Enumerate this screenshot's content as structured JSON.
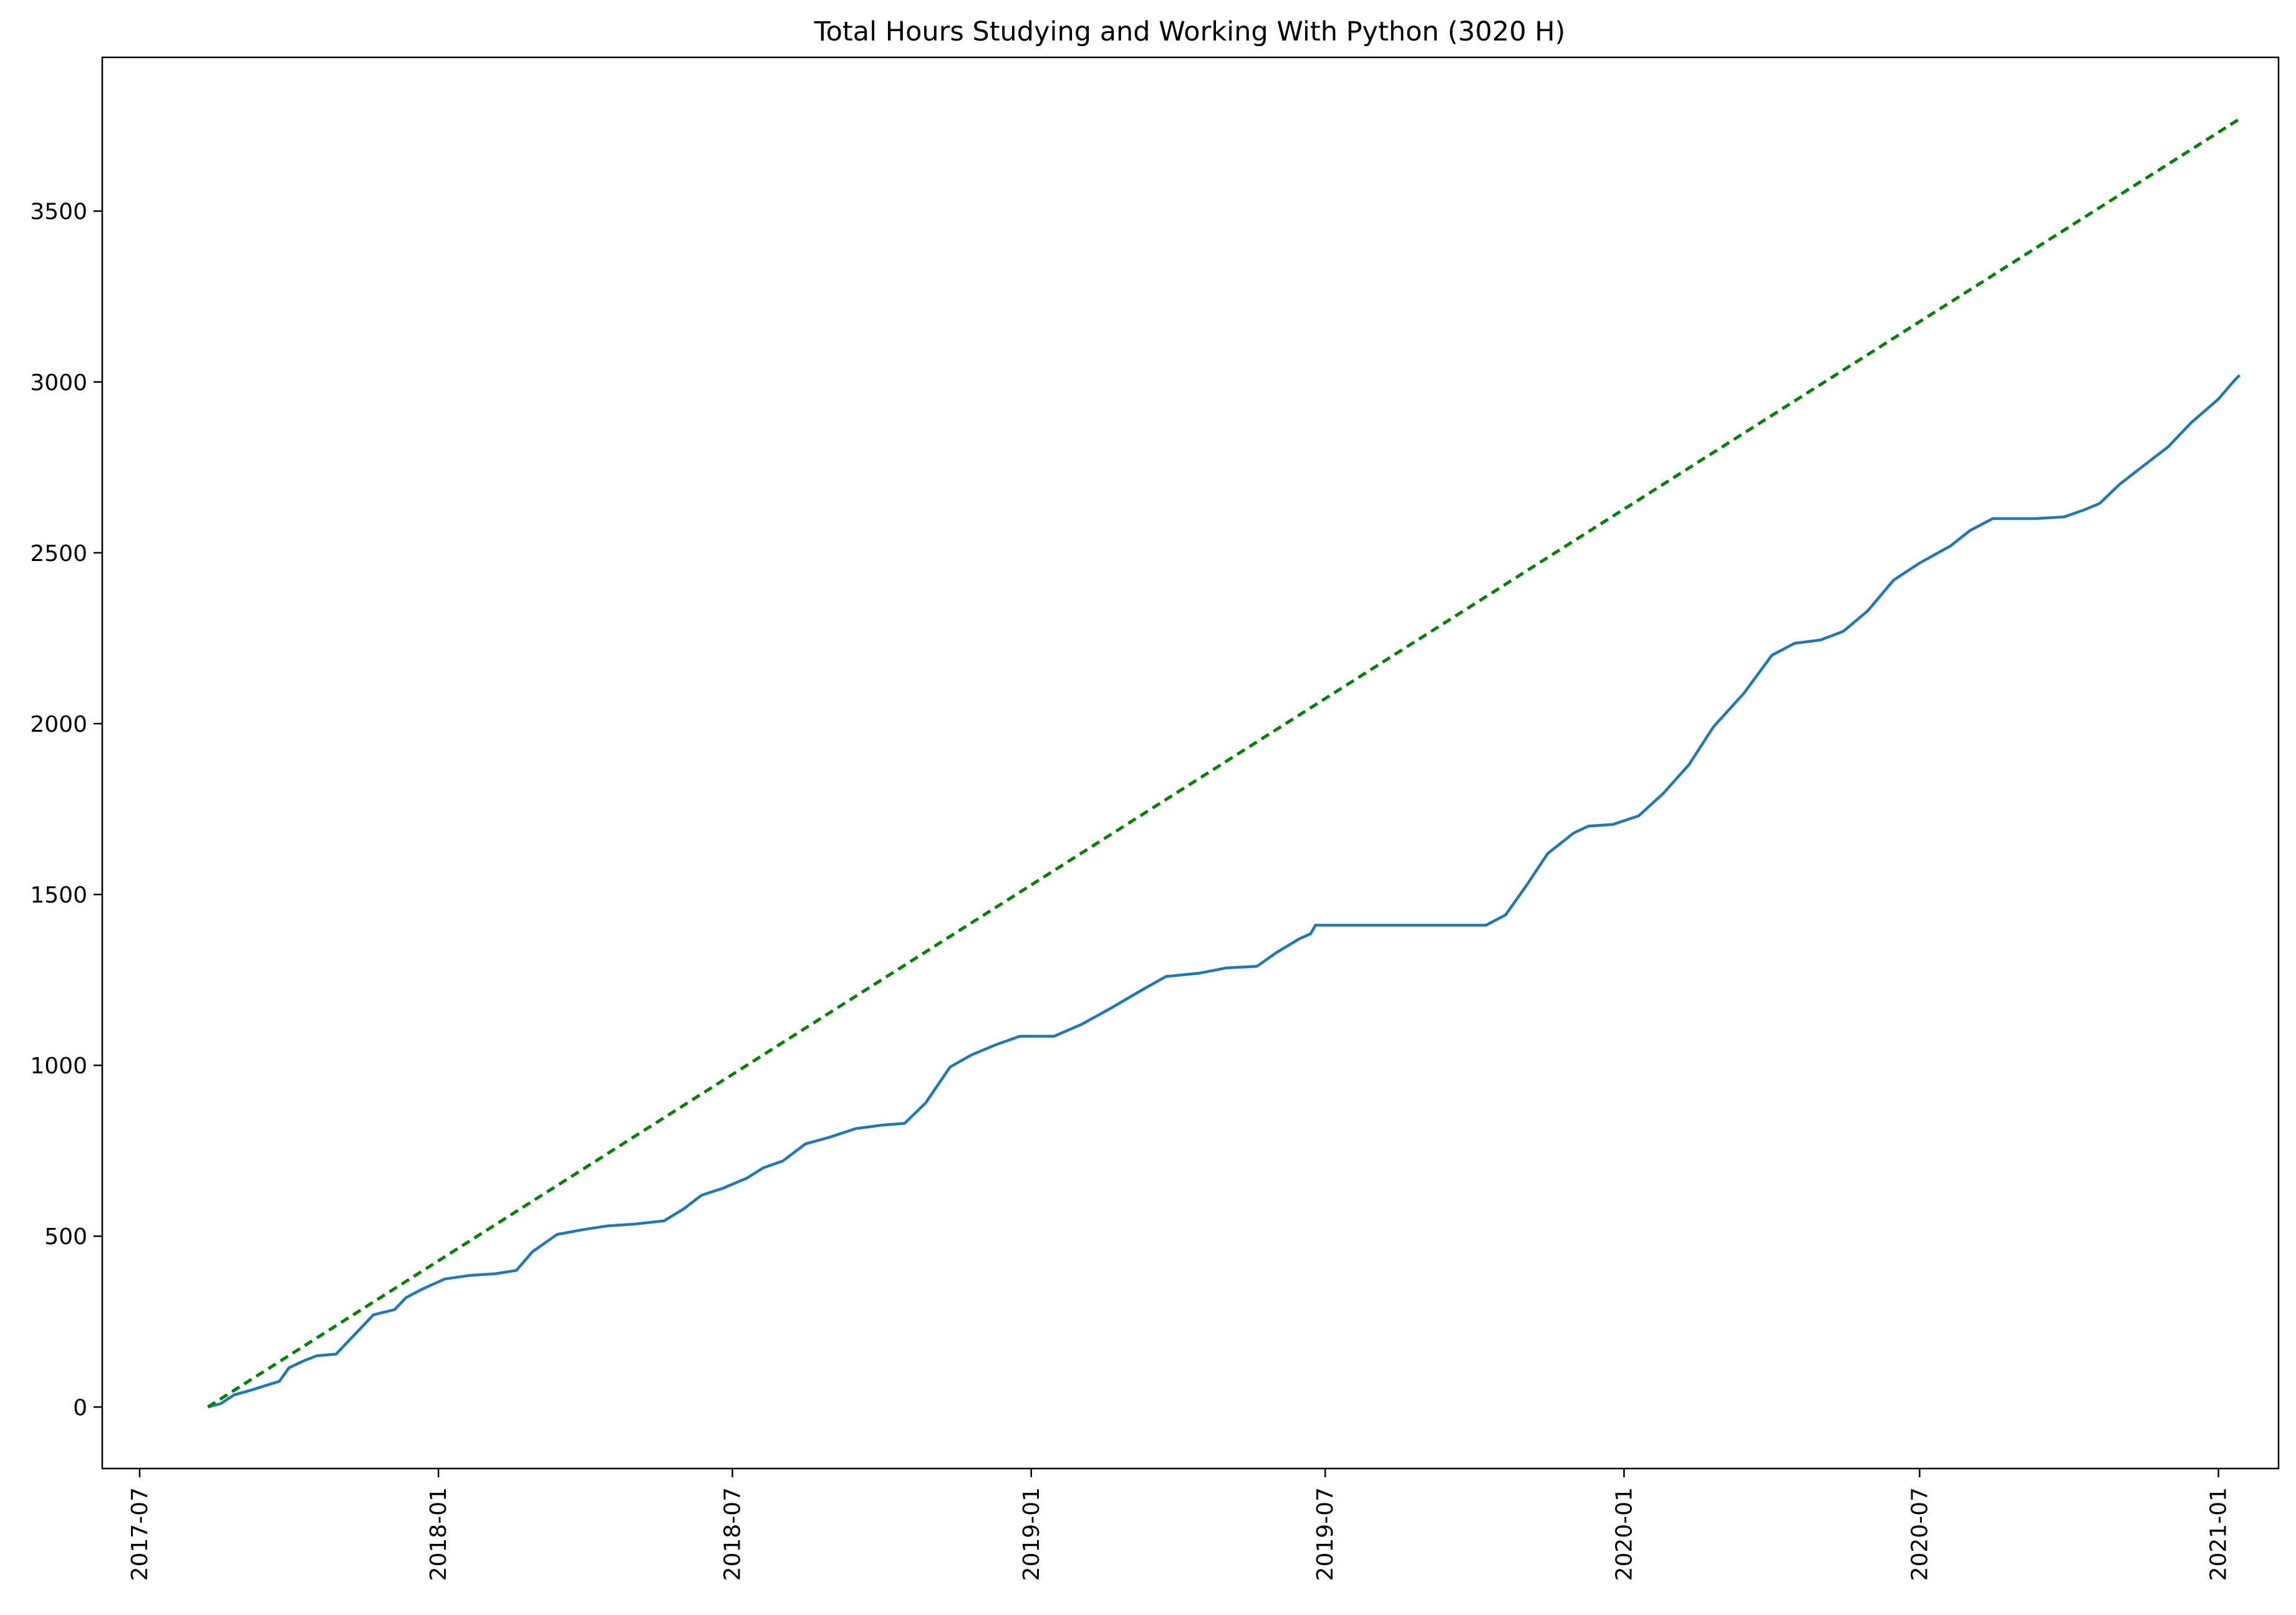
{
  "chart_data": {
    "type": "line",
    "title": "Total Hours Studying and Working With Python (3020 H)",
    "xlabel": "",
    "ylabel": "",
    "x_axis_type": "date",
    "xlim": [
      "2017-06-08",
      "2021-02-07"
    ],
    "ylim": [
      -180,
      3950
    ],
    "x_ticks": [
      "2017-07",
      "2018-01",
      "2018-07",
      "2019-01",
      "2019-07",
      "2020-01",
      "2020-07",
      "2021-01"
    ],
    "y_ticks": [
      0,
      500,
      1000,
      1500,
      2000,
      2500,
      3000,
      3500
    ],
    "grid": false,
    "legend": "none",
    "series": [
      {
        "color": "#1f77b4",
        "style": "solid",
        "points": [
          [
            "2017-08-12",
            0
          ],
          [
            "2017-08-20",
            10
          ],
          [
            "2017-08-28",
            35
          ],
          [
            "2017-09-08",
            50
          ],
          [
            "2017-09-18",
            65
          ],
          [
            "2017-09-25",
            75
          ],
          [
            "2017-10-01",
            115
          ],
          [
            "2017-10-10",
            135
          ],
          [
            "2017-10-18",
            150
          ],
          [
            "2017-10-30",
            155
          ],
          [
            "2017-11-10",
            210
          ],
          [
            "2017-11-22",
            270
          ],
          [
            "2017-12-05",
            285
          ],
          [
            "2017-12-12",
            320
          ],
          [
            "2017-12-22",
            345
          ],
          [
            "2018-01-05",
            375
          ],
          [
            "2018-01-20",
            385
          ],
          [
            "2018-02-05",
            390
          ],
          [
            "2018-02-18",
            400
          ],
          [
            "2018-02-28",
            455
          ],
          [
            "2018-03-15",
            505
          ],
          [
            "2018-04-01",
            520
          ],
          [
            "2018-04-15",
            530
          ],
          [
            "2018-05-01",
            535
          ],
          [
            "2018-05-20",
            545
          ],
          [
            "2018-06-01",
            580
          ],
          [
            "2018-06-12",
            620
          ],
          [
            "2018-06-25",
            640
          ],
          [
            "2018-07-10",
            670
          ],
          [
            "2018-07-20",
            700
          ],
          [
            "2018-08-01",
            720
          ],
          [
            "2018-08-15",
            770
          ],
          [
            "2018-08-30",
            790
          ],
          [
            "2018-09-15",
            815
          ],
          [
            "2018-10-01",
            825
          ],
          [
            "2018-10-15",
            830
          ],
          [
            "2018-10-28",
            890
          ],
          [
            "2018-11-12",
            995
          ],
          [
            "2018-11-25",
            1030
          ],
          [
            "2018-12-10",
            1060
          ],
          [
            "2018-12-25",
            1085
          ],
          [
            "2019-01-15",
            1085
          ],
          [
            "2019-02-01",
            1120
          ],
          [
            "2019-02-20",
            1170
          ],
          [
            "2019-03-10",
            1220
          ],
          [
            "2019-03-25",
            1260
          ],
          [
            "2019-04-15",
            1270
          ],
          [
            "2019-05-01",
            1285
          ],
          [
            "2019-05-20",
            1290
          ],
          [
            "2019-06-01",
            1330
          ],
          [
            "2019-06-15",
            1370
          ],
          [
            "2019-06-22",
            1385
          ],
          [
            "2019-06-25",
            1410
          ],
          [
            "2019-07-15",
            1410
          ],
          [
            "2019-10-08",
            1410
          ],
          [
            "2019-10-20",
            1440
          ],
          [
            "2019-11-01",
            1520
          ],
          [
            "2019-11-15",
            1620
          ],
          [
            "2019-12-01",
            1680
          ],
          [
            "2019-12-10",
            1700
          ],
          [
            "2019-12-25",
            1705
          ],
          [
            "2020-01-10",
            1730
          ],
          [
            "2020-01-25",
            1795
          ],
          [
            "2020-02-10",
            1880
          ],
          [
            "2020-02-25",
            1990
          ],
          [
            "2020-03-15",
            2090
          ],
          [
            "2020-04-01",
            2200
          ],
          [
            "2020-04-15",
            2235
          ],
          [
            "2020-05-01",
            2245
          ],
          [
            "2020-05-15",
            2270
          ],
          [
            "2020-05-30",
            2330
          ],
          [
            "2020-06-15",
            2420
          ],
          [
            "2020-07-01",
            2470
          ],
          [
            "2020-07-20",
            2520
          ],
          [
            "2020-08-01",
            2565
          ],
          [
            "2020-08-15",
            2600
          ],
          [
            "2020-09-10",
            2600
          ],
          [
            "2020-09-28",
            2605
          ],
          [
            "2020-10-10",
            2625
          ],
          [
            "2020-10-20",
            2645
          ],
          [
            "2020-11-01",
            2700
          ],
          [
            "2020-11-20",
            2770
          ],
          [
            "2020-12-01",
            2810
          ],
          [
            "2020-12-15",
            2880
          ],
          [
            "2021-01-01",
            2950
          ],
          [
            "2021-01-10",
            3000
          ],
          [
            "2021-01-14",
            3020
          ]
        ]
      },
      {
        "color": "#008000",
        "style": "dashed",
        "points": [
          [
            "2017-08-12",
            0
          ],
          [
            "2021-01-14",
            3770
          ]
        ]
      }
    ]
  }
}
